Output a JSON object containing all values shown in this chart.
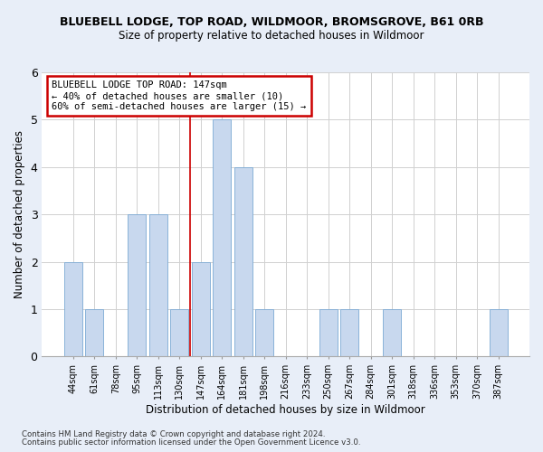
{
  "title": "BLUEBELL LODGE, TOP ROAD, WILDMOOR, BROMSGROVE, B61 0RB",
  "subtitle": "Size of property relative to detached houses in Wildmoor",
  "xlabel": "Distribution of detached houses by size in Wildmoor",
  "ylabel": "Number of detached properties",
  "categories": [
    "44sqm",
    "61sqm",
    "78sqm",
    "95sqm",
    "113sqm",
    "130sqm",
    "147sqm",
    "164sqm",
    "181sqm",
    "198sqm",
    "216sqm",
    "233sqm",
    "250sqm",
    "267sqm",
    "284sqm",
    "301sqm",
    "318sqm",
    "336sqm",
    "353sqm",
    "370sqm",
    "387sqm"
  ],
  "values": [
    2,
    1,
    0,
    3,
    3,
    1,
    2,
    5,
    4,
    1,
    0,
    0,
    1,
    1,
    0,
    1,
    0,
    0,
    0,
    0,
    1
  ],
  "bar_color": "#c8d8ee",
  "bar_edge_color": "#7baad4",
  "highlight_index": 6,
  "highlight_line_color": "#cc0000",
  "annotation_text": "BLUEBELL LODGE TOP ROAD: 147sqm\n← 40% of detached houses are smaller (10)\n60% of semi-detached houses are larger (15) →",
  "annotation_box_color": "#ffffff",
  "annotation_box_edge_color": "#cc0000",
  "ylim": [
    0,
    6
  ],
  "yticks": [
    0,
    1,
    2,
    3,
    4,
    5,
    6
  ],
  "footer_line1": "Contains HM Land Registry data © Crown copyright and database right 2024.",
  "footer_line2": "Contains public sector information licensed under the Open Government Licence v3.0.",
  "background_color": "#e8eef8",
  "plot_background_color": "#ffffff",
  "grid_color": "#d0d0d0"
}
